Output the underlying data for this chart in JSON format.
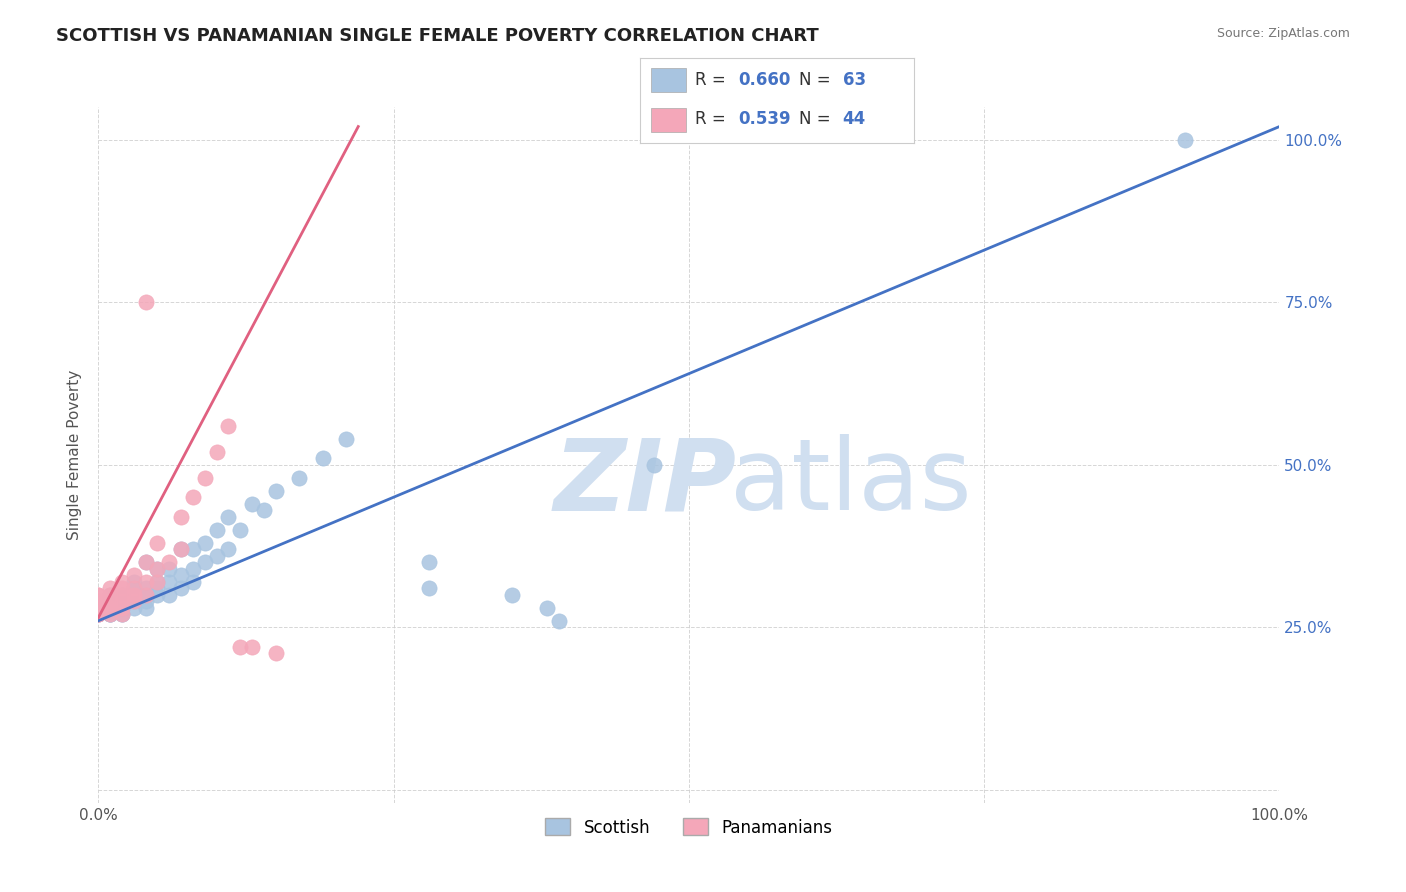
{
  "title": "SCOTTISH VS PANAMANIAN SINGLE FEMALE POVERTY CORRELATION CHART",
  "source": "Source: ZipAtlas.com",
  "ylabel": "Single Female Poverty",
  "xlim": [
    0,
    1
  ],
  "ylim": [
    -0.02,
    1.05
  ],
  "x_ticks": [
    0.0,
    0.25,
    0.5,
    0.75,
    1.0
  ],
  "x_tick_labels": [
    "0.0%",
    "",
    "",
    "",
    "100.0%"
  ],
  "y_ticks": [
    0.0,
    0.25,
    0.5,
    0.75,
    1.0
  ],
  "y_tick_labels_right": [
    "",
    "25.0%",
    "50.0%",
    "75.0%",
    "100.0%"
  ],
  "scottish_color": "#a8c4e0",
  "panamanian_color": "#f4a7b9",
  "scottish_line_color": "#4472c4",
  "panamanian_line_color": "#e06080",
  "R_scottish": 0.66,
  "N_scottish": 63,
  "R_panamanian": 0.539,
  "N_panamanian": 44,
  "watermark_zip": "ZIP",
  "watermark_atlas": "atlas",
  "watermark_color": "#d0dff0",
  "background_color": "#ffffff",
  "grid_color": "#cccccc",
  "title_fontsize": 13,
  "scottish_points_x": [
    0.0,
    0.0,
    0.0,
    0.0,
    0.01,
    0.01,
    0.01,
    0.01,
    0.01,
    0.01,
    0.01,
    0.01,
    0.01,
    0.02,
    0.02,
    0.02,
    0.02,
    0.02,
    0.02,
    0.02,
    0.03,
    0.03,
    0.03,
    0.03,
    0.03,
    0.04,
    0.04,
    0.04,
    0.04,
    0.04,
    0.05,
    0.05,
    0.05,
    0.05,
    0.06,
    0.06,
    0.06,
    0.07,
    0.07,
    0.07,
    0.08,
    0.08,
    0.08,
    0.09,
    0.09,
    0.1,
    0.1,
    0.11,
    0.11,
    0.12,
    0.13,
    0.14,
    0.15,
    0.17,
    0.19,
    0.21,
    0.28,
    0.28,
    0.35,
    0.38,
    0.39,
    0.47,
    0.92
  ],
  "scottish_points_y": [
    0.27,
    0.27,
    0.28,
    0.28,
    0.27,
    0.27,
    0.27,
    0.28,
    0.28,
    0.28,
    0.29,
    0.29,
    0.3,
    0.27,
    0.27,
    0.28,
    0.28,
    0.29,
    0.3,
    0.3,
    0.28,
    0.29,
    0.3,
    0.31,
    0.32,
    0.28,
    0.29,
    0.3,
    0.31,
    0.35,
    0.3,
    0.31,
    0.32,
    0.34,
    0.3,
    0.32,
    0.34,
    0.31,
    0.33,
    0.37,
    0.32,
    0.34,
    0.37,
    0.35,
    0.38,
    0.36,
    0.4,
    0.37,
    0.42,
    0.4,
    0.44,
    0.43,
    0.46,
    0.48,
    0.51,
    0.54,
    0.31,
    0.35,
    0.3,
    0.28,
    0.26,
    0.5,
    1.0
  ],
  "panamanian_points_x": [
    0.0,
    0.0,
    0.0,
    0.0,
    0.0,
    0.0,
    0.0,
    0.0,
    0.0,
    0.0,
    0.0,
    0.01,
    0.01,
    0.01,
    0.01,
    0.01,
    0.01,
    0.02,
    0.02,
    0.02,
    0.02,
    0.02,
    0.02,
    0.03,
    0.03,
    0.03,
    0.03,
    0.04,
    0.04,
    0.04,
    0.05,
    0.05,
    0.05,
    0.06,
    0.07,
    0.07,
    0.08,
    0.09,
    0.1,
    0.11,
    0.12,
    0.13,
    0.15,
    0.04
  ],
  "panamanian_points_y": [
    0.27,
    0.27,
    0.27,
    0.28,
    0.28,
    0.28,
    0.29,
    0.29,
    0.29,
    0.3,
    0.3,
    0.27,
    0.28,
    0.28,
    0.29,
    0.3,
    0.31,
    0.27,
    0.28,
    0.29,
    0.3,
    0.31,
    0.32,
    0.29,
    0.3,
    0.31,
    0.33,
    0.3,
    0.32,
    0.35,
    0.32,
    0.34,
    0.38,
    0.35,
    0.37,
    0.42,
    0.45,
    0.48,
    0.52,
    0.56,
    0.22,
    0.22,
    0.21,
    0.75
  ],
  "scottish_line_x": [
    0.0,
    1.0
  ],
  "scottish_line_y": [
    0.26,
    1.02
  ],
  "panamanian_line_x": [
    0.0,
    0.22
  ],
  "panamanian_line_y": [
    0.265,
    1.02
  ]
}
